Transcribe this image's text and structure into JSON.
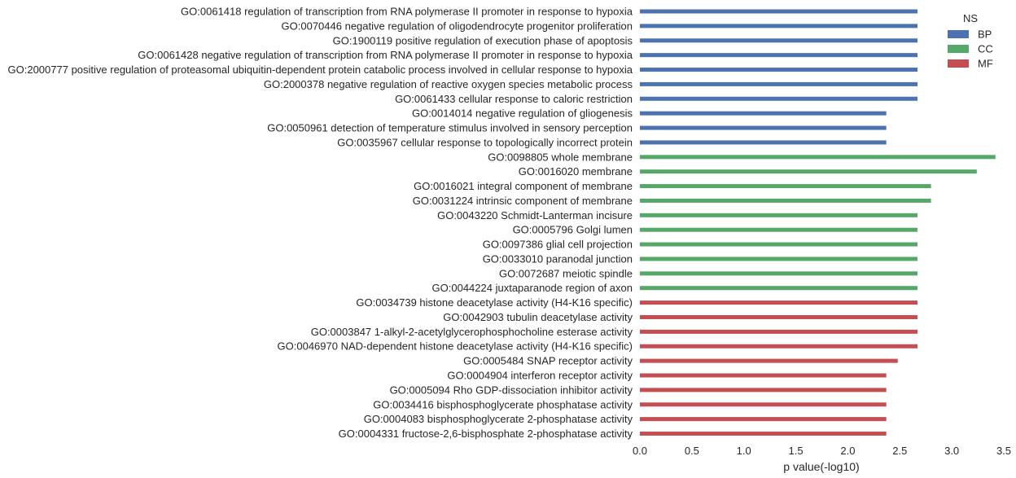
{
  "chart_data": {
    "type": "bar",
    "orientation": "horizontal",
    "xlabel": "p value(-log10)",
    "xlim": [
      0.0,
      3.5
    ],
    "xticks": [
      "0.0",
      "0.5",
      "1.0",
      "1.5",
      "2.0",
      "2.5",
      "3.0",
      "3.5"
    ],
    "grid": false,
    "legend": {
      "title": "NS",
      "placement": "top-right",
      "entries": [
        {
          "name": "BP",
          "color": "#4c72b0"
        },
        {
          "name": "CC",
          "color": "#55a868"
        },
        {
          "name": "MF",
          "color": "#c44e52"
        }
      ]
    },
    "bars": [
      {
        "label": "GO:0061418 regulation of transcription from RNA polymerase II promoter in response to hypoxia",
        "value": 2.67,
        "group": "BP"
      },
      {
        "label": "GO:0070446 negative regulation of oligodendrocyte progenitor proliferation",
        "value": 2.67,
        "group": "BP"
      },
      {
        "label": "GO:1900119 positive regulation of execution phase of apoptosis",
        "value": 2.67,
        "group": "BP"
      },
      {
        "label": "GO:0061428 negative regulation of transcription from RNA polymerase II promoter in response to hypoxia",
        "value": 2.67,
        "group": "BP"
      },
      {
        "label": "GO:2000777 positive regulation of proteasomal ubiquitin-dependent protein catabolic process involved in cellular response to hypoxia",
        "value": 2.67,
        "group": "BP"
      },
      {
        "label": "GO:2000378 negative regulation of reactive oxygen species metabolic process",
        "value": 2.67,
        "group": "BP"
      },
      {
        "label": "GO:0061433 cellular response to caloric restriction",
        "value": 2.67,
        "group": "BP"
      },
      {
        "label": "GO:0014014 negative regulation of gliogenesis",
        "value": 2.37,
        "group": "BP"
      },
      {
        "label": "GO:0050961 detection of temperature stimulus involved in sensory perception",
        "value": 2.37,
        "group": "BP"
      },
      {
        "label": "GO:0035967 cellular response to topologically incorrect protein",
        "value": 2.37,
        "group": "BP"
      },
      {
        "label": "GO:0098805 whole membrane",
        "value": 3.42,
        "group": "CC"
      },
      {
        "label": "GO:0016020 membrane",
        "value": 3.24,
        "group": "CC"
      },
      {
        "label": "GO:0016021 integral component of membrane",
        "value": 2.8,
        "group": "CC"
      },
      {
        "label": "GO:0031224 intrinsic component of membrane",
        "value": 2.8,
        "group": "CC"
      },
      {
        "label": "GO:0043220 Schmidt-Lanterman incisure",
        "value": 2.67,
        "group": "CC"
      },
      {
        "label": "GO:0005796 Golgi lumen",
        "value": 2.67,
        "group": "CC"
      },
      {
        "label": "GO:0097386 glial cell projection",
        "value": 2.67,
        "group": "CC"
      },
      {
        "label": "GO:0033010 paranodal junction",
        "value": 2.67,
        "group": "CC"
      },
      {
        "label": "GO:0072687 meiotic spindle",
        "value": 2.67,
        "group": "CC"
      },
      {
        "label": "GO:0044224 juxtaparanode region of axon",
        "value": 2.67,
        "group": "CC"
      },
      {
        "label": "GO:0034739 histone deacetylase activity (H4-K16 specific)",
        "value": 2.67,
        "group": "MF"
      },
      {
        "label": "GO:0042903 tubulin deacetylase activity",
        "value": 2.67,
        "group": "MF"
      },
      {
        "label": "GO:0003847 1-alkyl-2-acetylglycerophosphocholine esterase activity",
        "value": 2.67,
        "group": "MF"
      },
      {
        "label": "GO:0046970 NAD-dependent histone deacetylase activity (H4-K16 specific)",
        "value": 2.67,
        "group": "MF"
      },
      {
        "label": "GO:0005484 SNAP receptor activity",
        "value": 2.48,
        "group": "MF"
      },
      {
        "label": "GO:0004904 interferon receptor activity",
        "value": 2.37,
        "group": "MF"
      },
      {
        "label": "GO:0005094 Rho GDP-dissociation inhibitor activity",
        "value": 2.37,
        "group": "MF"
      },
      {
        "label": "GO:0034416 bisphosphoglycerate phosphatase activity",
        "value": 2.37,
        "group": "MF"
      },
      {
        "label": "GO:0004083 bisphosphoglycerate 2-phosphatase activity",
        "value": 2.37,
        "group": "MF"
      },
      {
        "label": "GO:0004331 fructose-2,6-bisphosphate 2-phosphatase activity",
        "value": 2.37,
        "group": "MF"
      }
    ]
  }
}
